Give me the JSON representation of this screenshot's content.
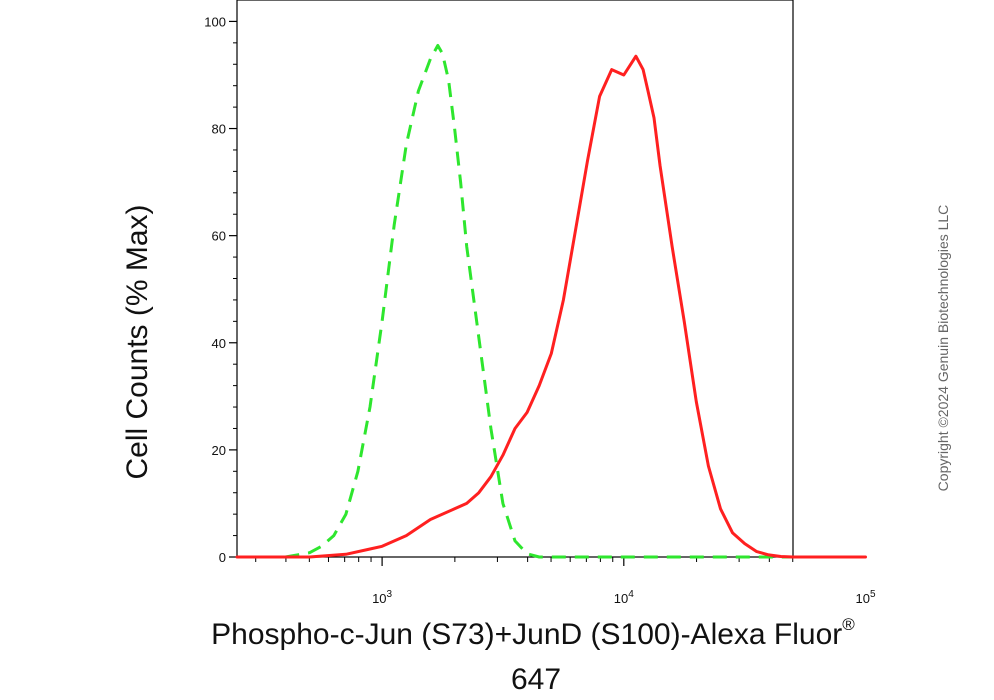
{
  "chart_data": {
    "type": "line",
    "xlabel": "Phospho-c-Jun (S73)+JunD (S100)-Alexa Fluor® 647",
    "xlabel_line1": "Phospho-c-Jun (S73)+JunD (S100)-Alexa Fluor",
    "xlabel_sup": "®",
    "xlabel_line2": "647",
    "ylabel": "Cell Counts (% Max)",
    "x_scale": "log",
    "xlim": [
      251,
      50119
    ],
    "ylim": [
      0,
      104
    ],
    "grid": false,
    "y_ticks": [
      0,
      20,
      40,
      60,
      80,
      100
    ],
    "y_tick_labels": [
      "0",
      "20",
      "40",
      "60",
      "80",
      "100"
    ],
    "x_ticks": [
      {
        "value": 1000,
        "base": "10",
        "exp": "3"
      },
      {
        "value": 10000,
        "base": "10",
        "exp": "4"
      },
      {
        "value": 100000,
        "base": "10",
        "exp": "5"
      }
    ],
    "series": [
      {
        "color": "#2ee62e",
        "dash": "dashed",
        "x": [
          398,
          501,
          562,
          631,
          708,
          794,
          891,
          1000,
          1122,
          1259,
          1413,
          1585,
          1700,
          1778,
          1884,
          1995,
          2113,
          2239,
          2512,
          2818,
          3162,
          3548,
          3981,
          4467,
          5012,
          10000,
          20000,
          50119
        ],
        "y": [
          0,
          0.8,
          2,
          4,
          8,
          16,
          28,
          44,
          62,
          77,
          87,
          93,
          95.5,
          94,
          89,
          80,
          70,
          58,
          41,
          24,
          10,
          3,
          0.6,
          0,
          0,
          0,
          0,
          0
        ]
      },
      {
        "color": "#ff2020",
        "dash": "solid",
        "x": [
          251,
          501,
          708,
          891,
          1000,
          1259,
          1585,
          1995,
          2239,
          2512,
          2818,
          3162,
          3548,
          3981,
          4467,
          5012,
          5623,
          6310,
          7079,
          7943,
          8913,
          10000,
          11220,
          12023,
          12589,
          13335,
          14125,
          15849,
          17783,
          19953,
          22387,
          25119,
          28184,
          31623,
          35481,
          39811,
          44668,
          50119,
          63096,
          100000,
          50119
        ],
        "y": [
          0,
          0,
          0.5,
          1.5,
          2,
          4,
          7,
          9,
          10,
          12,
          15,
          19,
          24,
          27,
          32,
          38,
          48,
          61,
          74,
          86,
          91,
          90,
          93.5,
          91,
          87,
          82,
          73,
          58,
          44,
          29,
          17,
          9,
          4.5,
          2.5,
          1,
          0.4,
          0.1,
          0,
          0,
          0,
          0
        ]
      }
    ]
  },
  "copyright": "Copyright ©2024 Genuin Biotechnologies LLC"
}
